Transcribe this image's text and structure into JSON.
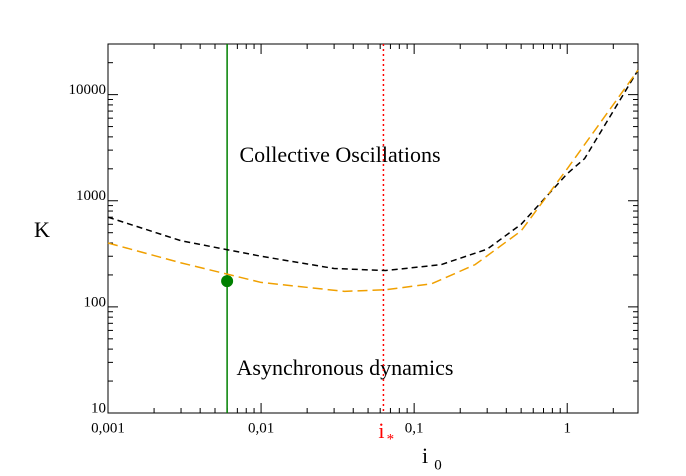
{
  "chart_data": {
    "type": "line",
    "xlabel": "i",
    "xlabel_sub": "0",
    "ylabel": "K",
    "xlog": true,
    "ylog": true,
    "xlim": [
      0.001,
      2.9
    ],
    "ylim": [
      10,
      30000
    ],
    "xticks": [
      {
        "value": 0.001,
        "label": "0,001"
      },
      {
        "value": 0.01,
        "label": "0,01"
      },
      {
        "value": 0.1,
        "label": "0,1"
      },
      1
    ],
    "yticks": [
      10,
      100,
      1000,
      10000
    ],
    "series": [
      {
        "color": "#000000",
        "dash": "6,4",
        "x": [
          0.001,
          0.003,
          0.01,
          0.03,
          0.065,
          0.15,
          0.3,
          0.5,
          1,
          1.3,
          2.9
        ],
        "values": [
          700,
          420,
          300,
          230,
          220,
          250,
          350,
          600,
          1800,
          2500,
          17000
        ]
      },
      {
        "color": "#f0a000",
        "dash": "10,5",
        "x": [
          0.001,
          0.003,
          0.01,
          0.035,
          0.065,
          0.13,
          0.25,
          0.5,
          1,
          2.9
        ],
        "values": [
          400,
          260,
          170,
          140,
          145,
          165,
          250,
          520,
          2000,
          17000
        ]
      }
    ],
    "vlines": [
      {
        "x": 0.006,
        "color": "#008000",
        "dash": "none"
      },
      {
        "x": 0.063,
        "color": "#ff0000",
        "dash": "2,3",
        "label": "i",
        "label_sub": "*"
      }
    ],
    "points": [
      {
        "x": 0.006,
        "y": 175,
        "color": "#008000"
      }
    ],
    "annotations": [
      {
        "text": "Collective Oscillations"
      },
      {
        "text": "Asynchronous dynamics"
      }
    ]
  }
}
